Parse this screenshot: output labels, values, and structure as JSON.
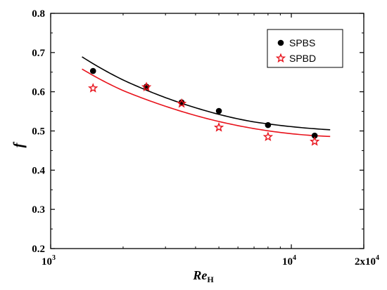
{
  "chart_data": {
    "type": "scatter",
    "x_scale": "log",
    "xlim": [
      1000,
      20000
    ],
    "ylim": [
      0.2,
      0.8
    ],
    "xlabel": "Re",
    "xlabel_sub": "H",
    "ylabel": "f",
    "x_tick_labels": [
      {
        "value": 1000,
        "base": "10",
        "exp": "3"
      },
      {
        "value": 10000,
        "base": "10",
        "exp": "4"
      },
      {
        "value": 20000,
        "base": "2x10",
        "exp": "4"
      }
    ],
    "y_ticks": [
      0.2,
      0.3,
      0.4,
      0.5,
      0.6,
      0.7,
      0.8
    ],
    "y_tick_labels": [
      "0.2",
      "0.3",
      "0.4",
      "0.5",
      "0.6",
      "0.7",
      "0.8"
    ],
    "legend_position": "top-right",
    "series": [
      {
        "name": "SPBS",
        "marker": "circle",
        "color": "#000000",
        "points": [
          {
            "x": 1500,
            "y": 0.653
          },
          {
            "x": 2500,
            "y": 0.613
          },
          {
            "x": 3500,
            "y": 0.573
          },
          {
            "x": 5000,
            "y": 0.551
          },
          {
            "x": 8000,
            "y": 0.515
          },
          {
            "x": 12500,
            "y": 0.488
          }
        ],
        "fit": [
          {
            "x": 1350,
            "y": 0.689
          },
          {
            "x": 2000,
            "y": 0.63
          },
          {
            "x": 3000,
            "y": 0.585
          },
          {
            "x": 4500,
            "y": 0.55
          },
          {
            "x": 7000,
            "y": 0.523
          },
          {
            "x": 10000,
            "y": 0.511
          },
          {
            "x": 14500,
            "y": 0.503
          }
        ]
      },
      {
        "name": "SPBD",
        "marker": "star",
        "color": "#e8121b",
        "points": [
          {
            "x": 1500,
            "y": 0.609
          },
          {
            "x": 2500,
            "y": 0.612
          },
          {
            "x": 3500,
            "y": 0.57
          },
          {
            "x": 5000,
            "y": 0.509
          },
          {
            "x": 8000,
            "y": 0.485
          },
          {
            "x": 12500,
            "y": 0.473
          }
        ],
        "fit": [
          {
            "x": 1350,
            "y": 0.658
          },
          {
            "x": 2000,
            "y": 0.603
          },
          {
            "x": 3000,
            "y": 0.563
          },
          {
            "x": 4500,
            "y": 0.531
          },
          {
            "x": 7000,
            "y": 0.506
          },
          {
            "x": 10000,
            "y": 0.493
          },
          {
            "x": 14500,
            "y": 0.486
          }
        ]
      }
    ]
  }
}
